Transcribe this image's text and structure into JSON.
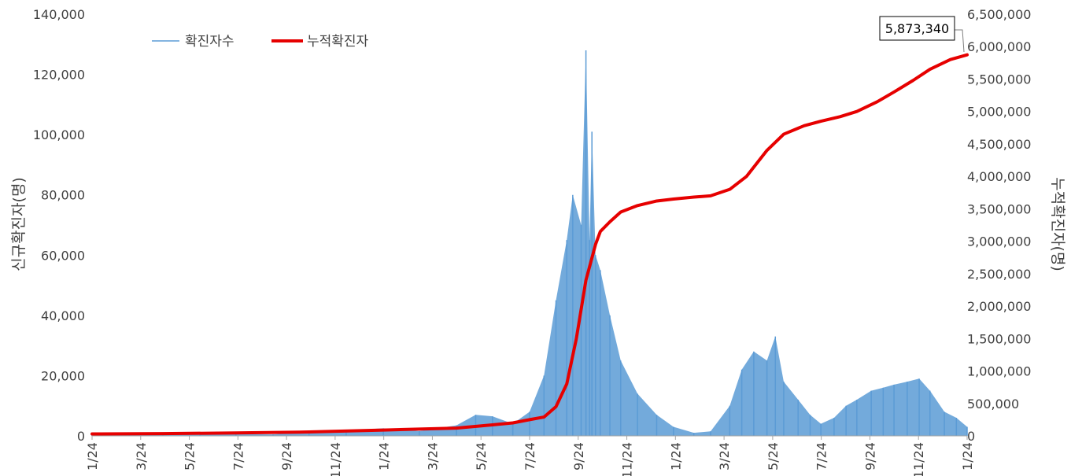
{
  "chart_data": {
    "type": "bar+line",
    "x_tick_labels": [
      "1/24",
      "3/24",
      "5/24",
      "7/24",
      "9/24",
      "11/24",
      "1/24",
      "3/24",
      "5/24",
      "7/24",
      "9/24",
      "11/24",
      "1/24",
      "3/24",
      "5/24",
      "7/24",
      "9/24",
      "11/24",
      "1/24"
    ],
    "left_axis": {
      "label": "신규확진자(명)",
      "ylim": [
        0,
        140000
      ],
      "ticks": [
        "0",
        "20,000",
        "40,000",
        "60,000",
        "80,000",
        "100,000",
        "120,000",
        "140,000"
      ]
    },
    "right_axis": {
      "label": "누적확진자(명)",
      "ylim": [
        0,
        6500000
      ],
      "ticks": [
        "0",
        "500,000",
        "1,000,000",
        "1,500,000",
        "2,000,000",
        "2,500,000",
        "3,000,000",
        "3,500,000",
        "4,000,000",
        "4,500,000",
        "5,000,000",
        "5,500,000",
        "6,000,000",
        "6,500,000"
      ]
    },
    "series": [
      {
        "name": "확진자수",
        "type": "bar",
        "axis": "left",
        "color": "#5b9bd5",
        "x": [
          "2021-01-24",
          "2021-02-24",
          "2021-03-24",
          "2021-04-24",
          "2021-05-24",
          "2021-06-24",
          "2021-07-24",
          "2021-08-24",
          "2021-09-24",
          "2021-10-24",
          "2021-11-24",
          "2021-12-10",
          "2021-12-24",
          "2022-01-10",
          "2022-01-24",
          "2022-02-05",
          "2022-02-15",
          "2022-02-24",
          "2022-03-01",
          "2022-03-08",
          "2022-03-12",
          "2022-03-15",
          "2022-03-17",
          "2022-03-20",
          "2022-03-24",
          "2022-04-01",
          "2022-04-10",
          "2022-04-24",
          "2022-05-10",
          "2022-05-24",
          "2022-06-10",
          "2022-06-24",
          "2022-07-10",
          "2022-07-20",
          "2022-07-30",
          "2022-08-10",
          "2022-08-17",
          "2022-08-24",
          "2022-09-05",
          "2022-09-15",
          "2022-09-24",
          "2022-10-05",
          "2022-10-15",
          "2022-10-24",
          "2022-11-05",
          "2022-11-15",
          "2022-11-24",
          "2022-12-05",
          "2022-12-15",
          "2022-12-24",
          "2023-01-05",
          "2023-01-15",
          "2023-01-24"
        ],
        "y": [
          400,
          450,
          450,
          650,
          600,
          500,
          1500,
          1800,
          2500,
          1600,
          3500,
          7000,
          6500,
          4000,
          8000,
          20000,
          45000,
          65000,
          80000,
          70000,
          128000,
          65000,
          101000,
          60000,
          55000,
          40000,
          25000,
          14000,
          7000,
          3000,
          1000,
          1500,
          10000,
          22000,
          28000,
          25000,
          33000,
          18000,
          12000,
          7000,
          4000,
          6000,
          10000,
          12000,
          15000,
          16000,
          17000,
          18000,
          19000,
          15000,
          8000,
          6000,
          3000
        ]
      },
      {
        "name": "누적확진자",
        "type": "line",
        "axis": "right",
        "color": "#e60000",
        "x": [
          "2021-01-24",
          "2021-03-24",
          "2021-05-24",
          "2021-07-24",
          "2021-09-24",
          "2021-11-24",
          "2021-12-24",
          "2022-01-10",
          "2022-01-24",
          "2022-02-05",
          "2022-02-15",
          "2022-02-24",
          "2022-03-04",
          "2022-03-12",
          "2022-03-20",
          "2022-03-24",
          "2022-04-01",
          "2022-04-10",
          "2022-04-24",
          "2022-05-10",
          "2022-05-24",
          "2022-06-10",
          "2022-06-24",
          "2022-07-10",
          "2022-07-24",
          "2022-08-10",
          "2022-08-24",
          "2022-09-10",
          "2022-09-24",
          "2022-10-10",
          "2022-10-24",
          "2022-11-10",
          "2022-11-24",
          "2022-12-10",
          "2022-12-24",
          "2023-01-10",
          "2023-01-24"
        ],
        "y": [
          30000,
          35000,
          45000,
          60000,
          90000,
          120000,
          170000,
          200000,
          250000,
          290000,
          450000,
          800000,
          1500000,
          2400000,
          2950000,
          3150000,
          3300000,
          3450000,
          3550000,
          3620000,
          3650000,
          3680000,
          3700000,
          3800000,
          4000000,
          4400000,
          4650000,
          4780000,
          4850000,
          4920000,
          5000000,
          5150000,
          5300000,
          5480000,
          5650000,
          5800000,
          5873340
        ]
      }
    ],
    "callout": "5,873,340",
    "legend": {
      "position": "top-left"
    }
  }
}
